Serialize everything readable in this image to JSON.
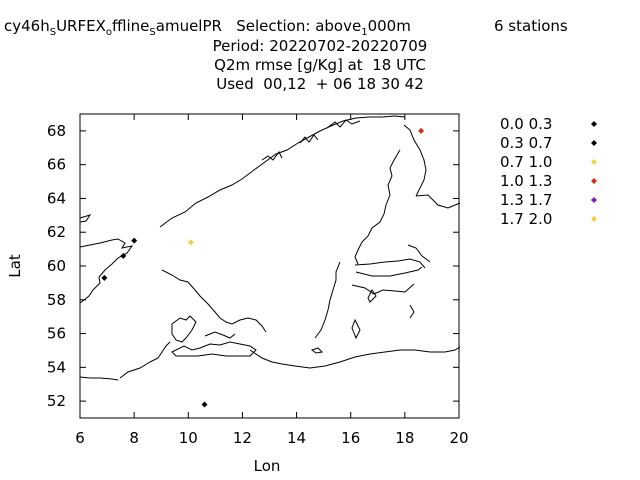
{
  "header": {
    "line1": {
      "parts": [
        {
          "text": "cy46h",
          "sub": false
        },
        {
          "text": "S",
          "sub": true
        },
        {
          "text": "URFEX",
          "sub": false
        },
        {
          "text": "o",
          "sub": true
        },
        {
          "text": "ffline",
          "sub": false
        },
        {
          "text": "S",
          "sub": true
        },
        {
          "text": "amuelPR   Selection: above",
          "sub": false
        },
        {
          "text": "1",
          "sub": true
        },
        {
          "text": "000m",
          "sub": false
        }
      ],
      "stations": "6 stations"
    },
    "line2": "Period: 20220702-20220709",
    "line3": "Q2m rmse [g/Kg] at  18 UTC",
    "line4": "Used  00,12  + 06 18 30 42"
  },
  "chart_data": {
    "type": "scatter",
    "xlabel": "Lon",
    "ylabel": "Lat",
    "xlim": [
      6,
      20
    ],
    "ylim": [
      51,
      69
    ],
    "xticks": [
      6,
      8,
      10,
      12,
      14,
      16,
      18,
      20
    ],
    "yticks": [
      52,
      54,
      56,
      58,
      60,
      62,
      64,
      66,
      68
    ],
    "grid": false,
    "background_map": "coastlines",
    "legend_placement": "right",
    "legend": [
      {
        "label": "0.0 0.3",
        "color": "#000000"
      },
      {
        "label": "0.3 0.7",
        "color": "#000000"
      },
      {
        "label": "0.7 1.0",
        "color": "#f0d040"
      },
      {
        "label": "1.0 1.3",
        "color": "#d03010"
      },
      {
        "label": "1.3 1.7",
        "color": "#8020c0"
      },
      {
        "label": "1.7 2.0",
        "color": "#f0d040"
      }
    ],
    "points": [
      {
        "x": 6.9,
        "y": 59.3,
        "color": "#000000"
      },
      {
        "x": 7.6,
        "y": 60.6,
        "color": "#000000"
      },
      {
        "x": 8.0,
        "y": 61.5,
        "color": "#000000"
      },
      {
        "x": 10.1,
        "y": 61.4,
        "color": "#f0d040"
      },
      {
        "x": 18.6,
        "y": 68.0,
        "color": "#d03010"
      },
      {
        "x": 10.6,
        "y": 51.8,
        "color": "#000000"
      }
    ]
  }
}
